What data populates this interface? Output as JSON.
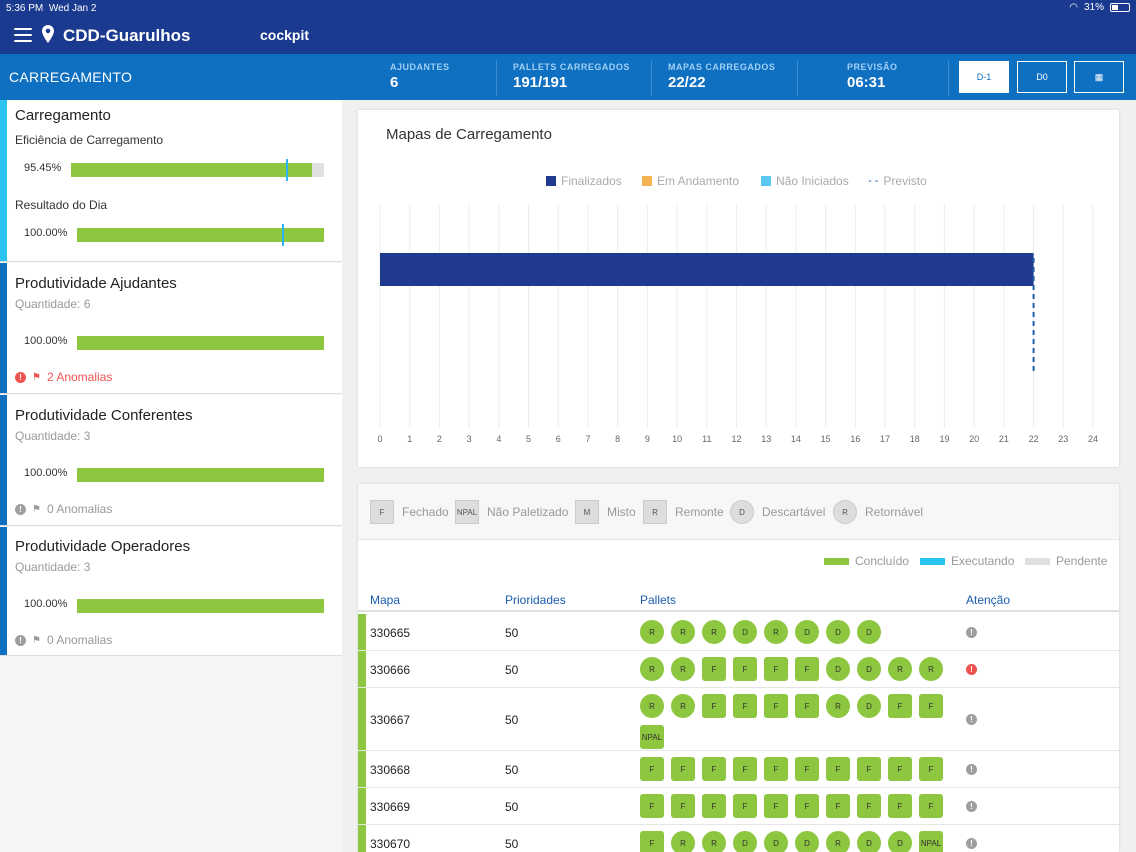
{
  "status": {
    "time": "5:36 PM",
    "date": "Wed Jan 2",
    "battery": "31%"
  },
  "header": {
    "title": "CDD-Guarulhos",
    "subtitle": "cockpit"
  },
  "kpis": {
    "section": "CARREGAMENTO",
    "items": [
      {
        "label": "AJUDANTES",
        "value": "6"
      },
      {
        "label": "PALLETS CARREGADOS",
        "value": "191/191"
      },
      {
        "label": "MAPAS CARREGADOS",
        "value": "22/22"
      },
      {
        "label": "PREVISÃO",
        "value": "06:31"
      }
    ],
    "buttons": [
      "D-1",
      "D0",
      "▦"
    ]
  },
  "colors": {
    "primary": "#1a3a8f",
    "secondary": "#0f6fc0",
    "success": "#8dc63f",
    "running": "#29b6f6",
    "pending": "#e0e0e0",
    "danger": "#ef5350",
    "finalizados": "#1f3a8f",
    "andamento": "#f4b350"
  },
  "cards": {
    "carregamento": {
      "title": "Carregamento",
      "eff_label": "Eficiência de Carregamento",
      "eff_pct": "95.45%",
      "eff_value": 0.9545,
      "eff_marker": 0.85,
      "res_label": "Resultado do Dia",
      "res_pct": "100.00%",
      "res_value": 1.0,
      "res_marker": 0.83
    },
    "ajudantes": {
      "title": "Produtividade Ajudantes",
      "qty": "Quantidade: 6",
      "pct": "100.00%",
      "value": 1.0,
      "anomalias": "2 Anomalias"
    },
    "conferentes": {
      "title": "Produtividade Conferentes",
      "qty": "Quantidade: 3",
      "pct": "100.00%",
      "value": 1.0,
      "anomalias": "0 Anomalias"
    },
    "operadores": {
      "title": "Produtividade Operadores",
      "qty": "Quantidade: 3",
      "pct": "100.00%",
      "value": 1.0,
      "anomalias": "0 Anomalias"
    }
  },
  "chart_data": {
    "type": "bar",
    "title": "Mapas de Carregamento",
    "orientation": "horizontal",
    "legend": [
      "Finalizados",
      "Em Andamento",
      "Não Iniciados",
      "Previsto"
    ],
    "series": [
      {
        "name": "Finalizados",
        "values": [
          22
        ]
      },
      {
        "name": "Em Andamento",
        "values": [
          0
        ]
      },
      {
        "name": "Não Iniciados",
        "values": [
          0
        ]
      }
    ],
    "previsto": 22,
    "xlim": [
      0,
      24
    ],
    "xticks": [
      "0",
      "1",
      "2",
      "3",
      "4",
      "5",
      "6",
      "7",
      "8",
      "9",
      "10",
      "11",
      "12",
      "13",
      "14",
      "15",
      "16",
      "17",
      "18",
      "19",
      "20",
      "21",
      "22",
      "23",
      "24"
    ],
    "grid": true,
    "legend_position": "top"
  },
  "pallet_legend": [
    {
      "code": "F",
      "label": "Fechado"
    },
    {
      "code": "NPAL",
      "label": "Não Paletizado"
    },
    {
      "code": "M",
      "label": "Misto"
    },
    {
      "code": "R",
      "label": "Remonte"
    },
    {
      "code": "D",
      "label": "Descartável"
    },
    {
      "code": "R",
      "label": "Retornável"
    }
  ],
  "status_legend": [
    "Concluído",
    "Executando",
    "Pendente"
  ],
  "table": {
    "headers": [
      "Mapa",
      "Prioridades",
      "Pallets",
      "Atenção"
    ],
    "rows": [
      {
        "mapa": "330665",
        "prio": "50",
        "att": "info",
        "pallets": [
          "R",
          "R",
          "R",
          "D",
          "R",
          "D",
          "D",
          "D"
        ]
      },
      {
        "mapa": "330666",
        "prio": "50",
        "att": "error",
        "pallets": [
          "R",
          "R",
          "F",
          "F",
          "F",
          "F",
          "D",
          "D",
          "R",
          "R"
        ]
      },
      {
        "mapa": "330667",
        "prio": "50",
        "att": "info",
        "pallets": [
          "R",
          "R",
          "F",
          "F",
          "F",
          "F",
          "R",
          "D",
          "F",
          "F",
          "NPAL"
        ]
      },
      {
        "mapa": "330668",
        "prio": "50",
        "att": "info",
        "pallets": [
          "F",
          "F",
          "F",
          "F",
          "F",
          "F",
          "F",
          "F",
          "F",
          "F"
        ]
      },
      {
        "mapa": "330669",
        "prio": "50",
        "att": "info",
        "pallets": [
          "F",
          "F",
          "F",
          "F",
          "F",
          "F",
          "F",
          "F",
          "F",
          "F"
        ]
      },
      {
        "mapa": "330670",
        "prio": "50",
        "att": "info",
        "pallets": [
          "F",
          "R",
          "R",
          "D",
          "D",
          "D",
          "R",
          "D",
          "D",
          "NPAL"
        ]
      }
    ]
  }
}
